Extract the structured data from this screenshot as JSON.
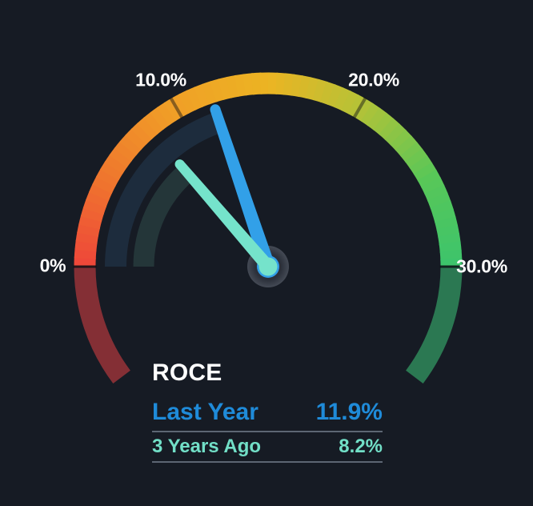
{
  "app": {
    "background": "#161b24",
    "divider_color": "#5d6673",
    "text_color": "#ffffff"
  },
  "chart_data": {
    "type": "gauge",
    "title": "ROCE",
    "unit": "%",
    "min": 0,
    "max": 30,
    "tick_labels": [
      {
        "value": 0,
        "label": "0%"
      },
      {
        "value": 10,
        "label": "10.0%"
      },
      {
        "value": 20,
        "label": "20.0%"
      },
      {
        "value": 30,
        "label": "30.0%"
      }
    ],
    "minor_tick_values": [
      10,
      20
    ],
    "series": [
      {
        "name": "Last Year",
        "value": 11.9,
        "display_value": "11.9%",
        "color": "#1f8bd9",
        "needle_color": "#32a0e8",
        "track_color": "#1d2c3d"
      },
      {
        "name": "3 Years Ago",
        "value": 8.2,
        "display_value": "8.2%",
        "color": "#72dfc7",
        "needle_color": "#75e3cb",
        "track_color": "#243639"
      }
    ],
    "arc_gradient_stops": [
      {
        "t": 0.0,
        "color": "#ee463a"
      },
      {
        "t": 0.15,
        "color": "#ef742e"
      },
      {
        "t": 0.32,
        "color": "#f09e27"
      },
      {
        "t": 0.5,
        "color": "#ecb423"
      },
      {
        "t": 0.66,
        "color": "#b7c236"
      },
      {
        "t": 0.84,
        "color": "#58c758"
      },
      {
        "t": 1.0,
        "color": "#3cc46c"
      }
    ],
    "under_min_color": "#842f35",
    "over_max_color": "#2b7852",
    "boundary_tick_color": "rgba(10,14,20,0.85)",
    "minor_tick_color": "rgba(10,14,20,0.45)",
    "hub_colors": {
      "inner": "#2b303a",
      "outer": "#444a55"
    },
    "legend_position": "bottom-left"
  }
}
